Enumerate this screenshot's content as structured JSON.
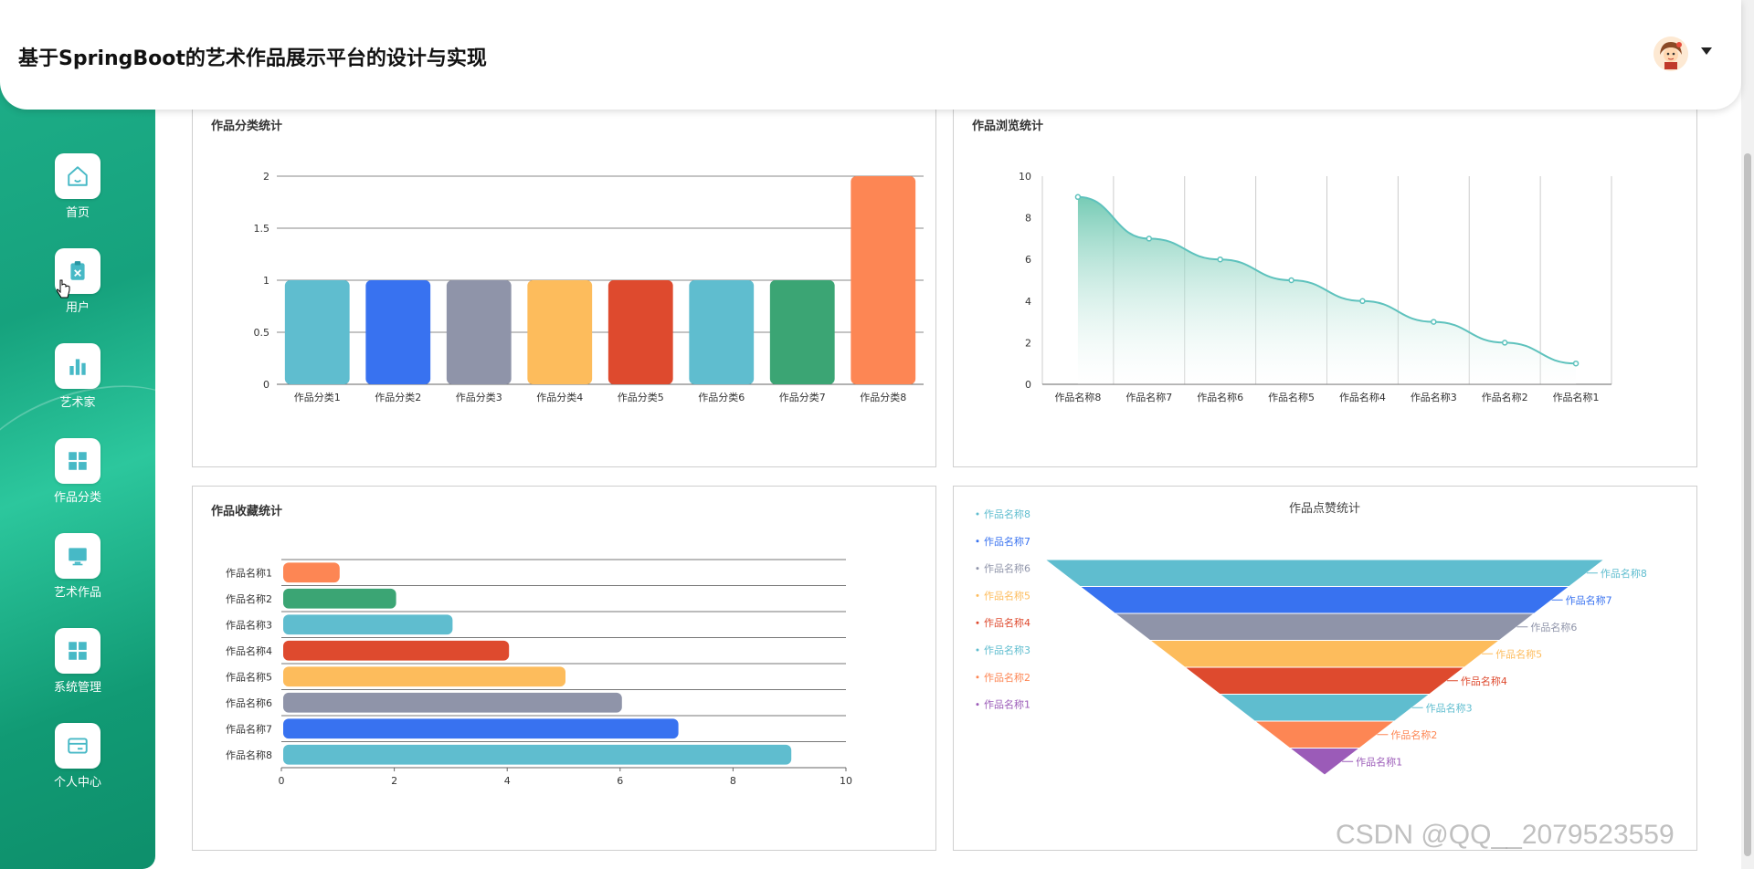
{
  "app": {
    "title": "基于SpringBoot的艺术作品展示平台的设计与实现"
  },
  "nav": [
    {
      "label": "首页",
      "icon": "home-icon"
    },
    {
      "label": "用户",
      "icon": "clipboard-icon"
    },
    {
      "label": "艺术家",
      "icon": "bar-chart-icon"
    },
    {
      "label": "作品分类",
      "icon": "grid-icon"
    },
    {
      "label": "艺术作品",
      "icon": "monitor-icon"
    },
    {
      "label": "系统管理",
      "icon": "grid-icon"
    },
    {
      "label": "个人中心",
      "icon": "card-icon"
    }
  ],
  "watermark": "CSDN @QQ__2079523559",
  "colors": {
    "sidebar": "#1fb08a",
    "teal_line": "#5ec2bd"
  },
  "chart_data": [
    {
      "id": "category",
      "type": "bar",
      "title": "作品分类统计",
      "categories": [
        "作品分类1",
        "作品分类2",
        "作品分类3",
        "作品分类4",
        "作品分类5",
        "作品分类6",
        "作品分类7",
        "作品分类8"
      ],
      "values": [
        1,
        1,
        1,
        1,
        1,
        1,
        1,
        2
      ],
      "colors": [
        "#5fbdcf",
        "#3872f0",
        "#8f94a9",
        "#fdbc5c",
        "#de4a2e",
        "#5fbdcf",
        "#3ba574",
        "#fd8654"
      ],
      "yticks": [
        "0",
        "0.5",
        "1",
        "1.5",
        "2"
      ],
      "ylim": [
        0,
        2
      ]
    },
    {
      "id": "views",
      "type": "area",
      "title": "作品浏览统计",
      "categories": [
        "作品名称8",
        "作品名称7",
        "作品名称6",
        "作品名称5",
        "作品名称4",
        "作品名称3",
        "作品名称2",
        "作品名称1"
      ],
      "values": [
        9,
        7,
        6,
        5,
        4,
        3,
        2,
        1
      ],
      "yticks": [
        "0",
        "2",
        "4",
        "6",
        "8",
        "10"
      ],
      "ylim": [
        0,
        10
      ],
      "color": "#5ec2bd"
    },
    {
      "id": "favorites",
      "type": "bar",
      "orientation": "horizontal",
      "title": "作品收藏统计",
      "categories": [
        "作品名称1",
        "作品名称2",
        "作品名称3",
        "作品名称4",
        "作品名称5",
        "作品名称6",
        "作品名称7",
        "作品名称8"
      ],
      "values": [
        1,
        2,
        3,
        4,
        5,
        6,
        7,
        9
      ],
      "colors": [
        "#fd8654",
        "#3ba574",
        "#5fbdcf",
        "#de4a2e",
        "#fdbc5c",
        "#8f94a9",
        "#3872f0",
        "#5fbdcf"
      ],
      "xticks": [
        "0",
        "2",
        "4",
        "6",
        "8",
        "10"
      ],
      "xlim": [
        0,
        10
      ]
    },
    {
      "id": "likes",
      "type": "funnel",
      "title": "作品点赞统计",
      "categories": [
        "作品名称8",
        "作品名称7",
        "作品名称6",
        "作品名称5",
        "作品名称4",
        "作品名称3",
        "作品名称2",
        "作品名称1"
      ],
      "values": [
        8,
        7,
        6,
        5,
        4,
        3,
        2,
        1
      ],
      "colors": [
        "#5fbdcf",
        "#3872f0",
        "#8f94a9",
        "#fdbc5c",
        "#de4a2e",
        "#5fbdcf",
        "#fd8654",
        "#9b5bb8"
      ],
      "legend_position": "left"
    }
  ]
}
